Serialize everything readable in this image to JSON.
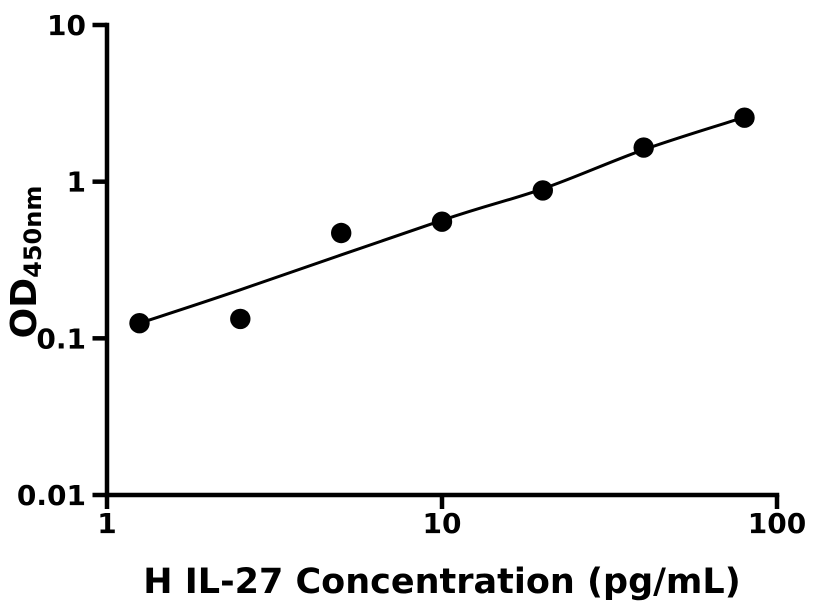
{
  "chart_data": {
    "type": "scatter",
    "title": "",
    "xlabel": "H IL-27 Concentration (pg/mL)",
    "ylabel_main": "OD",
    "ylabel_sub": "450nm",
    "x_scale": "log10",
    "y_scale": "log10",
    "xlim": [
      1,
      100
    ],
    "ylim": [
      0.01,
      10
    ],
    "grid": false,
    "legend": null,
    "background_color": "#ffffff",
    "axis_color": "#000000",
    "marker_color": "#000000",
    "line_color": "#000000",
    "x_ticks": [
      {
        "value": 1,
        "label": "1"
      },
      {
        "value": 10,
        "label": "10"
      },
      {
        "value": 100,
        "label": "100"
      }
    ],
    "y_ticks": [
      {
        "value": 10,
        "label": "10"
      },
      {
        "value": 1,
        "label": "1"
      },
      {
        "value": 0.1,
        "label": "0.1"
      },
      {
        "value": 0.01,
        "label": "0.01"
      }
    ],
    "series": [
      {
        "name": "standard-curve-data-points",
        "marker": "circle",
        "points": [
          {
            "x": 1.25,
            "y": 0.125
          },
          {
            "x": 2.5,
            "y": 0.133
          },
          {
            "x": 5,
            "y": 0.47
          },
          {
            "x": 10,
            "y": 0.555
          },
          {
            "x": 20,
            "y": 0.88
          },
          {
            "x": 40,
            "y": 1.65
          },
          {
            "x": 80,
            "y": 2.56
          }
        ]
      }
    ],
    "fit_curve": {
      "name": "4pl-fit-line",
      "points": [
        {
          "x": 1.25,
          "y": 0.125
        },
        {
          "x": 2.5,
          "y": 0.204
        },
        {
          "x": 10,
          "y": 0.567
        },
        {
          "x": 20,
          "y": 0.9
        },
        {
          "x": 40,
          "y": 1.6
        },
        {
          "x": 80,
          "y": 2.58
        }
      ]
    }
  }
}
